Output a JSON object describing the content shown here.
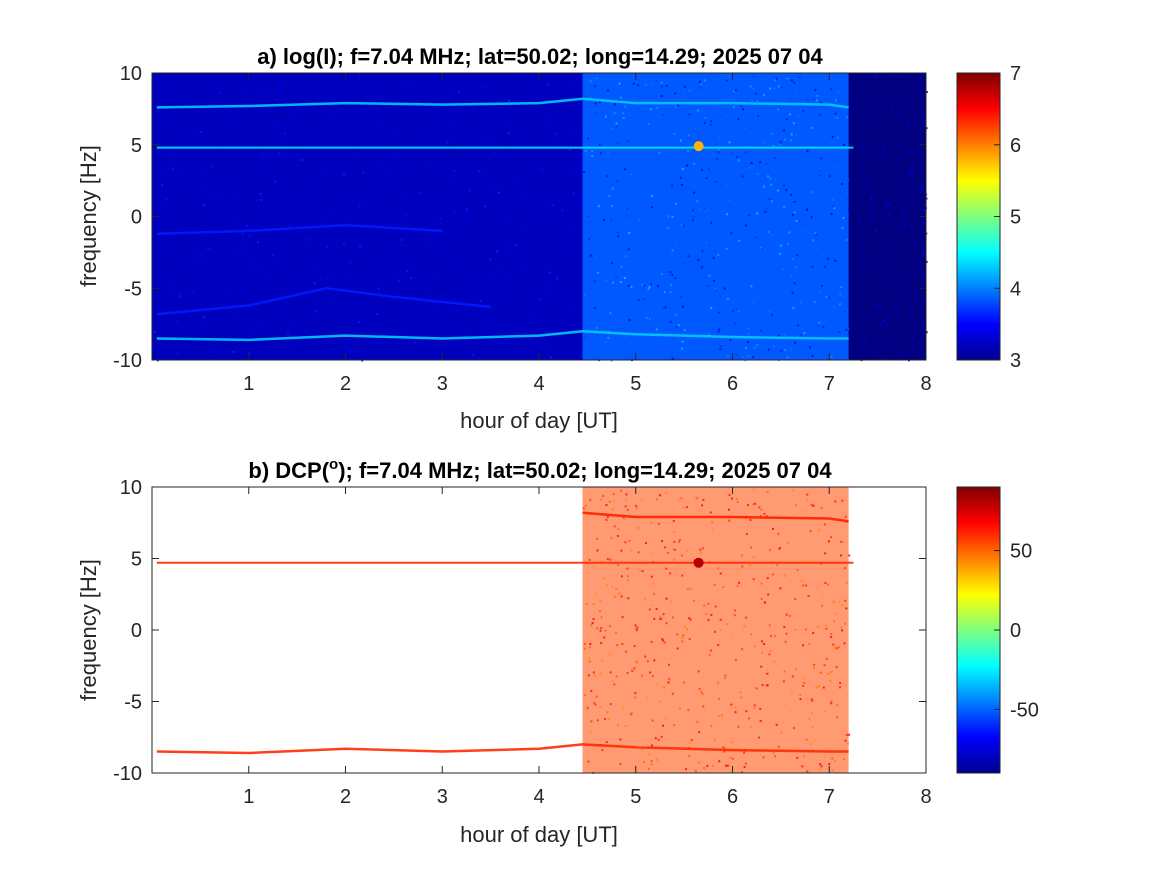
{
  "chart_data": [
    {
      "type": "heatmap",
      "title": "a) log(I); f=7.04 MHz;  lat=50.02; long=14.29; 2025 07 04",
      "xlabel": "hour of day [UT]",
      "ylabel": "frequency [Hz]",
      "xlim": [
        0,
        8
      ],
      "ylim": [
        -10,
        10
      ],
      "xticks": [
        "1",
        "2",
        "3",
        "4",
        "5",
        "6",
        "7",
        "8"
      ],
      "yticks": [
        "-10",
        "-5",
        "0",
        "5",
        "10"
      ],
      "colorbar": {
        "range": [
          3,
          7
        ],
        "ticks": [
          "3",
          "4",
          "5",
          "6",
          "7"
        ],
        "colormap": "jet"
      },
      "background_level": 3.0,
      "regions": [
        {
          "x": [
            0.0,
            4.45
          ],
          "level": 3.25
        },
        {
          "x": [
            4.45,
            7.2
          ],
          "level": 3.85
        },
        {
          "x": [
            7.3,
            8.0
          ],
          "level": 3.0
        }
      ],
      "lines": [
        {
          "name": "carrier",
          "x": [
            0.05,
            7.25
          ],
          "y": [
            4.8,
            4.8
          ],
          "level": 4.4
        },
        {
          "name": "upper sideband",
          "x": [
            0.05,
            1.0,
            2.0,
            3.0,
            4.0,
            4.45,
            5.0,
            6.0,
            7.0,
            7.2
          ],
          "y": [
            7.6,
            7.7,
            7.9,
            7.8,
            7.9,
            8.2,
            7.9,
            7.9,
            7.8,
            7.6
          ],
          "level": 4.3
        },
        {
          "name": "lower sideband",
          "x": [
            0.05,
            1.0,
            2.0,
            3.0,
            4.0,
            4.45,
            5.0,
            6.0,
            7.0,
            7.2
          ],
          "y": [
            -8.5,
            -8.6,
            -8.3,
            -8.5,
            -8.3,
            -8.0,
            -8.2,
            -8.4,
            -8.5,
            -8.5
          ],
          "level": 4.3
        },
        {
          "name": "drift",
          "x": [
            0.05,
            1.0,
            2.0,
            3.0
          ],
          "y": [
            -1.2,
            -1.0,
            -0.6,
            -1.0
          ],
          "level": 3.6
        },
        {
          "name": "drift",
          "x": [
            0.05,
            1.0,
            1.8,
            2.5,
            3.5
          ],
          "y": [
            -6.8,
            -6.2,
            -5.0,
            -5.6,
            -6.3
          ],
          "level": 3.6
        }
      ],
      "spot": {
        "x": 5.65,
        "y": 4.9,
        "level": 5.8
      }
    },
    {
      "type": "heatmap",
      "title": "b) DCP(",
      "title_sup": "o",
      "title_rest": "); f=7.04 MHz;  lat=50.02; long=14.29; 2025 07 04",
      "xlabel": "hour of day [UT]",
      "ylabel": "frequency [Hz]",
      "xlim": [
        0,
        8
      ],
      "ylim": [
        -10,
        10
      ],
      "xticks": [
        "1",
        "2",
        "3",
        "4",
        "5",
        "6",
        "7",
        "8"
      ],
      "yticks": [
        "-10",
        "-5",
        "0",
        "5",
        "10"
      ],
      "colorbar": {
        "range": [
          -90,
          90
        ],
        "ticks": [
          "50",
          "0",
          "-50"
        ],
        "tick_values": [
          50,
          0,
          -50
        ],
        "colormap": "jet"
      },
      "regions": [
        {
          "x": [
            4.45,
            7.2
          ],
          "value": 55
        }
      ],
      "lines": [
        {
          "name": "carrier",
          "x": [
            0.05,
            7.25
          ],
          "y": [
            4.7,
            4.7
          ],
          "value": 60
        },
        {
          "name": "upper sideband",
          "x": [
            4.45,
            5.0,
            6.0,
            7.0,
            7.2
          ],
          "y": [
            8.2,
            7.9,
            7.9,
            7.8,
            7.6
          ],
          "value": 62
        },
        {
          "name": "lower sideband",
          "x": [
            0.05,
            1.0,
            2.0,
            3.0,
            4.0,
            4.45,
            5.0,
            6.0,
            7.0,
            7.2
          ],
          "y": [
            -8.5,
            -8.6,
            -8.3,
            -8.5,
            -8.3,
            -8.0,
            -8.2,
            -8.4,
            -8.5,
            -8.5
          ],
          "value": 60
        }
      ],
      "spot": {
        "x": 5.65,
        "y": 4.7,
        "value": 80
      }
    }
  ]
}
